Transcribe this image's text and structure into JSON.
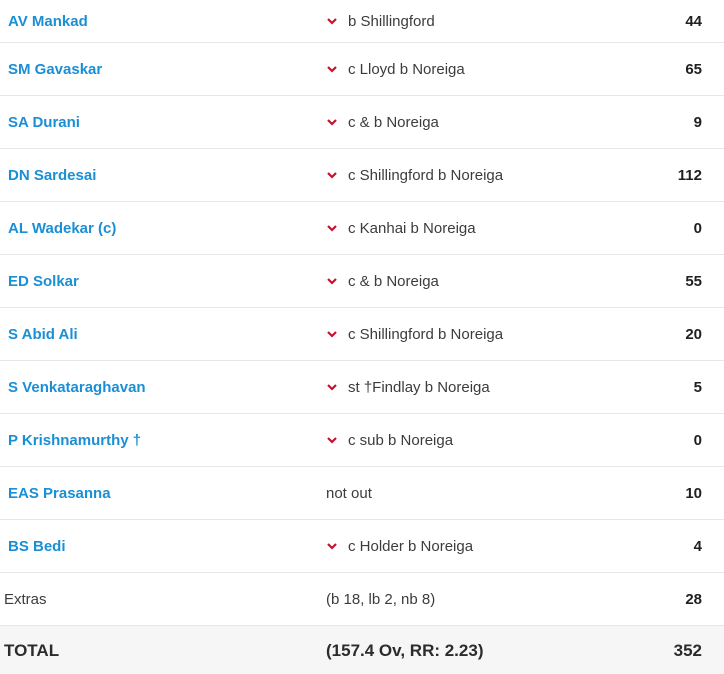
{
  "colors": {
    "link": "#1a8fd6",
    "chevron": "#c8102e",
    "total_bg": "#f6f6f7"
  },
  "batting": [
    {
      "batsman": "AV Mankad",
      "dismissal": "b Shillingford",
      "runs": "44",
      "icon": "chevron-down-icon"
    },
    {
      "batsman": "SM Gavaskar",
      "dismissal": "c Lloyd b Noreiga",
      "runs": "65",
      "icon": "chevron-down-icon"
    },
    {
      "batsman": "SA Durani",
      "dismissal": "c & b Noreiga",
      "runs": "9",
      "icon": "chevron-down-icon"
    },
    {
      "batsman": "DN Sardesai",
      "dismissal": "c Shillingford b Noreiga",
      "runs": "112",
      "icon": "chevron-down-icon"
    },
    {
      "batsman": "AL Wadekar (c)",
      "dismissal": "c Kanhai b Noreiga",
      "runs": "0",
      "icon": "chevron-down-icon"
    },
    {
      "batsman": "ED Solkar",
      "dismissal": "c & b Noreiga",
      "runs": "55",
      "icon": "chevron-down-icon"
    },
    {
      "batsman": "S Abid Ali",
      "dismissal": "c Shillingford b Noreiga",
      "runs": "20",
      "icon": "chevron-down-icon"
    },
    {
      "batsman": "S Venkataraghavan",
      "dismissal": "st †Findlay b Noreiga",
      "runs": "5",
      "icon": "chevron-down-icon"
    },
    {
      "batsman": "P Krishnamurthy †",
      "dismissal": "c sub b Noreiga",
      "runs": "0",
      "icon": "chevron-down-icon"
    },
    {
      "batsman": "EAS Prasanna",
      "dismissal": "not out",
      "runs": "10"
    },
    {
      "batsman": "BS Bedi",
      "dismissal": "c Holder b Noreiga",
      "runs": "4",
      "icon": "chevron-down-icon"
    }
  ],
  "extras": {
    "label": "Extras",
    "detail": "(b 18, lb 2, nb 8)",
    "runs": "28"
  },
  "total": {
    "label": "TOTAL",
    "detail": "(157.4 Ov, RR: 2.23)",
    "runs": "352"
  }
}
